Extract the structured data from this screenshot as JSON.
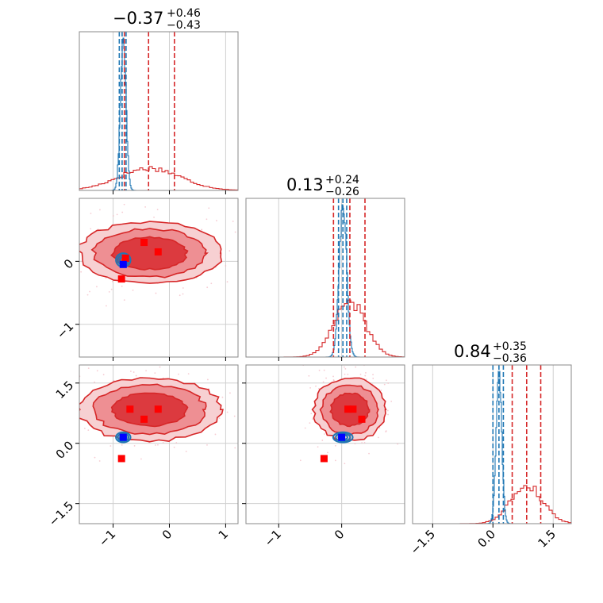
{
  "chart_data": {
    "type": "corner",
    "parameters": [
      {
        "title_value": "−0.37",
        "title_plus": "+0.46",
        "title_minus": "−0.43",
        "range": [
          -1.6,
          1.22
        ]
      },
      {
        "title_value": "0.13",
        "title_plus": "+0.24",
        "title_minus": "−0.26",
        "range": [
          -1.52,
          1.0
        ]
      },
      {
        "title_value": "0.84",
        "title_plus": "+0.35",
        "title_minus": "−0.36",
        "range": [
          -2.0,
          1.95
        ]
      }
    ],
    "ticks": [
      {
        "values": [
          -1,
          0,
          1
        ],
        "labels": [
          "−1",
          "0",
          "1"
        ]
      },
      {
        "values": [
          -1,
          0
        ],
        "labels": [
          "−1",
          "0"
        ]
      },
      {
        "values": [
          -1.5,
          0.0,
          1.5
        ],
        "labels": [
          "−1.5",
          "0.0",
          "1.5"
        ]
      }
    ],
    "grid": true,
    "series": [
      {
        "color": "#1f77b4",
        "quantiles": [
          [
            -0.89,
            -0.84,
            -0.77
          ],
          [
            -0.05,
            0.02,
            0.08
          ],
          [
            0.0,
            0.15,
            0.26
          ]
        ],
        "hist_centers": [
          [
            -0.82,
            0.05
          ],
          [
            0.02,
            0.06
          ],
          [
            0.15,
            0.07
          ]
        ],
        "points": [
          [
            -0.82,
            -0.05
          ],
          [
            -0.82,
            0.15
          ],
          [
            0.0,
            0.15
          ]
        ]
      },
      {
        "color": "#d62728",
        "quantiles": [
          [
            -0.8,
            -0.37,
            0.09
          ],
          [
            -0.13,
            0.13,
            0.37
          ],
          [
            0.48,
            0.84,
            1.19
          ]
        ],
        "hist_centers": [
          [
            -0.35,
            0.55
          ],
          [
            0.13,
            0.25
          ],
          [
            0.84,
            0.4
          ]
        ],
        "points_01": [
          [
            -0.85,
            -0.28
          ],
          [
            -0.78,
            0.05
          ],
          [
            -0.45,
            0.3
          ],
          [
            -0.2,
            0.15
          ]
        ],
        "points_02": [
          [
            -0.85,
            -0.38
          ],
          [
            -0.7,
            0.85
          ],
          [
            -0.45,
            0.6
          ],
          [
            -0.2,
            0.85
          ]
        ],
        "points_12": [
          [
            -0.28,
            -0.38
          ],
          [
            0.1,
            0.85
          ],
          [
            0.18,
            0.85
          ],
          [
            0.32,
            0.6
          ]
        ]
      }
    ]
  }
}
